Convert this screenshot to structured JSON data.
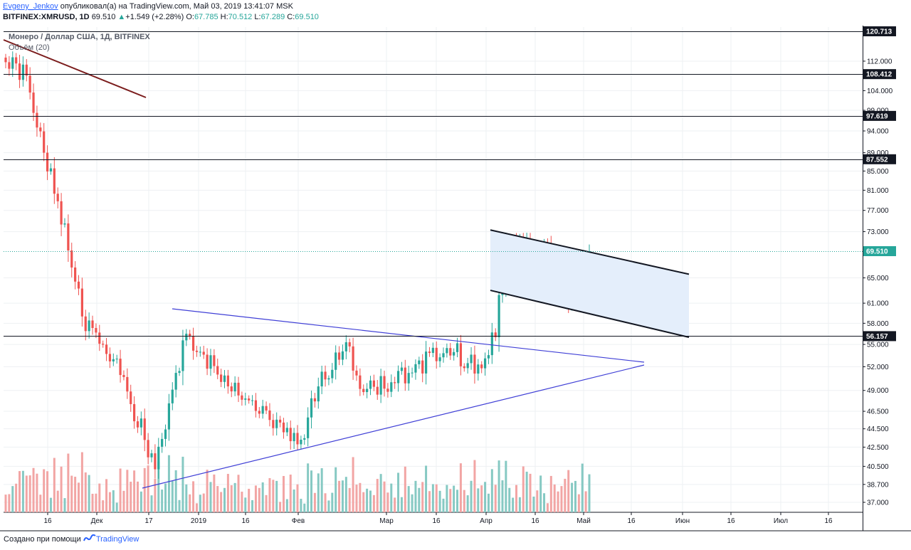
{
  "header": {
    "author": "Evgeny_Jenkov",
    "published": "опубликовал(а) на TradingView.com, Май 03, 2019 13:41:07 MSK",
    "symbol": "BITFINEX:XMRUSD, 1D",
    "last": "69.510",
    "triangle": "▲",
    "change": "+1.549 (+2.28%)",
    "o_label": "O:",
    "o": "67.785",
    "h_label": "H:",
    "h": "70.512",
    "l_label": "L:",
    "l": "67.289",
    "c_label": "C:",
    "c": "69.510"
  },
  "legend": {
    "title": "Монеро / Доллар США, 1Д, BITFINEX",
    "volume": "Объём (20)"
  },
  "footer": {
    "prefix": "Создано при помощи",
    "brand": "TradingView"
  },
  "colors": {
    "up": "#26a69a",
    "down": "#ef5350",
    "volume_up": "#86c9c3",
    "volume_down": "#f2a5a4",
    "wedge": "#3f3fd6",
    "downtrend": "#7b1c1c",
    "channel_fill": "#e4eefb",
    "last_price": "#26a69a"
  },
  "chart_data": {
    "type": "candlestick",
    "title": "Монеро / Доллар США, 1Д, BITFINEX",
    "x_ticks": [
      "16",
      "Дек",
      "17",
      "2019",
      "16",
      "Фев",
      "Мар",
      "16",
      "Апр",
      "16",
      "Май",
      "16",
      "Июн",
      "16",
      "Июл",
      "16"
    ],
    "y_ticks": [
      "112.000",
      "104.000",
      "99.000",
      "94.000",
      "89.000",
      "85.000",
      "81.000",
      "77.000",
      "73.000",
      "65.000",
      "61.000",
      "58.000",
      "55.000",
      "52.000",
      "49.000",
      "46.500",
      "44.500",
      "42.500",
      "40.500",
      "38.700",
      "37.000"
    ],
    "horizontal_levels": [
      "120.713",
      "108.412",
      "97.619",
      "87.552",
      "56.157"
    ],
    "last_price": "69.510",
    "ylim": [
      37,
      120.713
    ],
    "scale": "log",
    "grid": true,
    "segments": [
      {
        "from": 112,
        "to": 108,
        "n": 7,
        "seed": 1
      },
      {
        "from": 108,
        "to": 89,
        "n": 5,
        "seed": 2
      },
      {
        "from": 89,
        "to": 59,
        "n": 11,
        "seed": 3
      },
      {
        "from": 59,
        "to": 53,
        "n": 9,
        "seed": 4
      },
      {
        "from": 53,
        "to": 40.2,
        "n": 12,
        "seed": 5
      },
      {
        "from": 40.2,
        "to": 56.5,
        "n": 9,
        "seed": 6
      },
      {
        "from": 56.5,
        "to": 49.5,
        "n": 12,
        "seed": 7
      },
      {
        "from": 49.5,
        "to": 45.5,
        "n": 12,
        "seed": 8
      },
      {
        "from": 45.5,
        "to": 43.3,
        "n": 9,
        "seed": 9
      },
      {
        "from": 43.3,
        "to": 49.5,
        "n": 5,
        "seed": 10
      },
      {
        "from": 49.5,
        "to": 55.3,
        "n": 8,
        "seed": 11
      },
      {
        "from": 55.3,
        "to": 48.8,
        "n": 5,
        "seed": 12
      },
      {
        "from": 48.8,
        "to": 51.2,
        "n": 13,
        "seed": 13
      },
      {
        "from": 51.2,
        "to": 54.5,
        "n": 11,
        "seed": 14
      },
      {
        "from": 54.5,
        "to": 52.3,
        "n": 9,
        "seed": 15
      },
      {
        "from": 52.3,
        "to": 56.0,
        "n": 5,
        "seed": 16
      },
      {
        "from": 56.0,
        "to": 70.5,
        "n": 3,
        "seed": 17
      },
      {
        "from": 70.5,
        "to": 69.0,
        "n": 13,
        "seed": 18
      },
      {
        "from": 69.0,
        "to": 61.0,
        "n": 5,
        "seed": 19
      },
      {
        "from": 61.0,
        "to": 69.5,
        "n": 6,
        "seed": 20
      }
    ]
  }
}
